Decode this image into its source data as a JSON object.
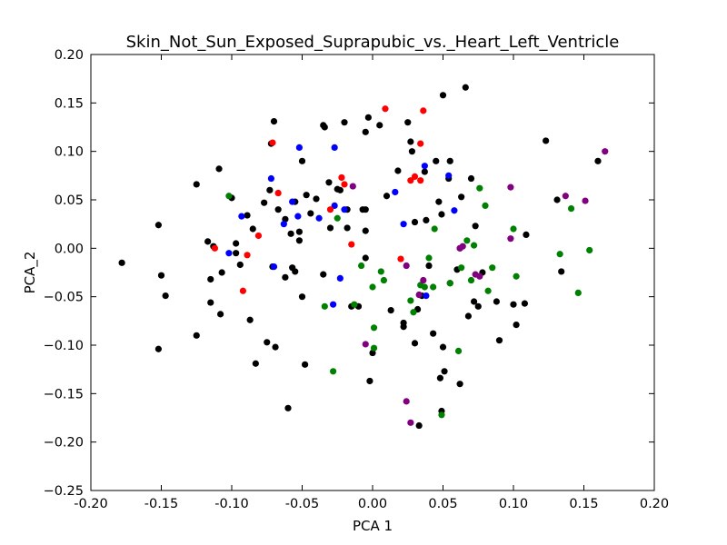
{
  "chart_data": {
    "type": "scatter",
    "title": "Skin_Not_Sun_Exposed_Suprapubic_vs._Heart_Left_Ventricle",
    "xlabel": "PCA 1",
    "ylabel": "PCA_2",
    "xlim": [
      -0.2,
      0.2
    ],
    "ylim": [
      -0.25,
      0.2
    ],
    "xticks": [
      "-0.20",
      "-0.15",
      "-0.10",
      "-0.05",
      "0.00",
      "0.05",
      "0.10",
      "0.15",
      "0.20"
    ],
    "xtick_values": [
      -0.2,
      -0.15,
      -0.1,
      -0.05,
      0.0,
      0.05,
      0.1,
      0.15,
      0.2
    ],
    "yticks": [
      "0.20",
      "0.15",
      "0.10",
      "0.05",
      "0.00",
      "−0.05",
      "−0.10",
      "−0.15",
      "−0.20",
      "−0.25"
    ],
    "ytick_values": [
      0.2,
      0.15,
      0.1,
      0.05,
      0.0,
      -0.05,
      -0.1,
      -0.15,
      -0.2,
      -0.25
    ],
    "grid": false,
    "series": [
      {
        "color": "#000000",
        "points": [
          [
            -0.178,
            -0.015
          ],
          [
            -0.152,
            0.024
          ],
          [
            -0.15,
            -0.028
          ],
          [
            -0.152,
            -0.104
          ],
          [
            -0.147,
            -0.049
          ],
          [
            -0.125,
            0.066
          ],
          [
            -0.125,
            -0.09
          ],
          [
            -0.117,
            0.007
          ],
          [
            -0.115,
            -0.032
          ],
          [
            -0.115,
            -0.056
          ],
          [
            -0.113,
            0.002
          ],
          [
            -0.109,
            0.082
          ],
          [
            -0.108,
            -0.068
          ],
          [
            -0.107,
            -0.025
          ],
          [
            -0.1,
            0.052
          ],
          [
            -0.097,
            0.005
          ],
          [
            -0.097,
            -0.005
          ],
          [
            -0.094,
            -0.017
          ],
          [
            -0.089,
            0.034
          ],
          [
            -0.087,
            -0.074
          ],
          [
            -0.085,
            0.02
          ],
          [
            -0.083,
            -0.119
          ],
          [
            -0.077,
            0.047
          ],
          [
            -0.075,
            -0.097
          ],
          [
            -0.073,
            0.06
          ],
          [
            -0.072,
            0.108
          ],
          [
            -0.07,
            0.131
          ],
          [
            -0.071,
            -0.019
          ],
          [
            -0.069,
            -0.102
          ],
          [
            -0.067,
            0.04
          ],
          [
            -0.062,
            0.03
          ],
          [
            -0.062,
            -0.03
          ],
          [
            -0.06,
            -0.165
          ],
          [
            -0.058,
            0.015
          ],
          [
            -0.057,
            -0.02
          ],
          [
            -0.055,
            -0.024
          ],
          [
            -0.055,
            0.048
          ],
          [
            -0.052,
            0.017
          ],
          [
            -0.052,
            0.008
          ],
          [
            -0.05,
            0.09
          ],
          [
            -0.05,
            -0.05
          ],
          [
            -0.048,
            -0.12
          ],
          [
            -0.047,
            0.055
          ],
          [
            -0.044,
            0.036
          ],
          [
            -0.04,
            0.051
          ],
          [
            -0.035,
            -0.027
          ],
          [
            -0.035,
            0.127
          ],
          [
            -0.034,
            0.125
          ],
          [
            -0.031,
            0.068
          ],
          [
            -0.03,
            0.021
          ],
          [
            -0.025,
            0.061
          ],
          [
            -0.023,
            0.06
          ],
          [
            -0.02,
            0.13
          ],
          [
            -0.018,
            0.04
          ],
          [
            -0.018,
            0.021
          ],
          [
            -0.015,
            -0.06
          ],
          [
            -0.01,
            -0.06
          ],
          [
            -0.007,
            0.04
          ],
          [
            -0.005,
            0.04
          ],
          [
            -0.005,
            0.12
          ],
          [
            -0.005,
            -0.01
          ],
          [
            -0.005,
            0.018
          ],
          [
            -0.003,
            0.135
          ],
          [
            -0.002,
            -0.137
          ],
          [
            0.0,
            -0.108
          ],
          [
            0.005,
            0.127
          ],
          [
            0.01,
            0.054
          ],
          [
            0.013,
            -0.064
          ],
          [
            0.018,
            0.08
          ],
          [
            0.022,
            -0.077
          ],
          [
            0.022,
            -0.081
          ],
          [
            0.025,
            0.13
          ],
          [
            0.027,
            0.11
          ],
          [
            0.028,
            0.1
          ],
          [
            0.03,
            0.027
          ],
          [
            0.03,
            -0.098
          ],
          [
            0.032,
            -0.063
          ],
          [
            0.033,
            -0.183
          ],
          [
            0.035,
            -0.049
          ],
          [
            0.037,
            0.079
          ],
          [
            0.038,
            0.029
          ],
          [
            0.04,
            -0.018
          ],
          [
            0.043,
            -0.088
          ],
          [
            0.045,
            0.09
          ],
          [
            0.047,
            0.048
          ],
          [
            0.048,
            -0.134
          ],
          [
            0.05,
            0.158
          ],
          [
            0.049,
            0.035
          ],
          [
            0.049,
            -0.168
          ],
          [
            0.05,
            -0.102
          ],
          [
            0.051,
            -0.127
          ],
          [
            0.054,
            0.072
          ],
          [
            0.055,
            0.09
          ],
          [
            0.055,
            -0.036
          ],
          [
            0.06,
            -0.022
          ],
          [
            0.062,
            -0.14
          ],
          [
            0.063,
            0.053
          ],
          [
            0.066,
            0.166
          ],
          [
            0.068,
            -0.07
          ],
          [
            0.07,
            0.072
          ],
          [
            0.072,
            -0.055
          ],
          [
            0.073,
            0.023
          ],
          [
            0.075,
            -0.06
          ],
          [
            0.078,
            -0.025
          ],
          [
            0.088,
            -0.055
          ],
          [
            0.09,
            -0.095
          ],
          [
            0.1,
            -0.058
          ],
          [
            0.102,
            -0.079
          ],
          [
            0.108,
            -0.057
          ],
          [
            0.109,
            0.014
          ],
          [
            0.123,
            0.111
          ],
          [
            0.131,
            0.05
          ],
          [
            0.134,
            -0.024
          ],
          [
            0.16,
            0.09
          ]
        ]
      },
      {
        "color": "#0000ff",
        "points": [
          [
            -0.102,
            -0.005
          ],
          [
            -0.093,
            0.033
          ],
          [
            -0.072,
            0.072
          ],
          [
            -0.07,
            -0.019
          ],
          [
            -0.063,
            0.025
          ],
          [
            -0.057,
            0.048
          ],
          [
            -0.053,
            0.033
          ],
          [
            -0.052,
            0.104
          ],
          [
            -0.038,
            0.031
          ],
          [
            -0.028,
            -0.058
          ],
          [
            -0.027,
            0.104
          ],
          [
            -0.023,
            -0.031
          ],
          [
            -0.02,
            0.04
          ],
          [
            -0.027,
            0.044
          ],
          [
            0.016,
            0.058
          ],
          [
            0.022,
            0.025
          ],
          [
            0.037,
            0.085
          ],
          [
            0.038,
            -0.049
          ],
          [
            0.054,
            0.075
          ],
          [
            0.058,
            0.039
          ]
        ]
      },
      {
        "color": "#ff0000",
        "points": [
          [
            -0.112,
            0.0
          ],
          [
            -0.089,
            -0.007
          ],
          [
            -0.081,
            0.013
          ],
          [
            -0.092,
            -0.044
          ],
          [
            -0.071,
            0.109
          ],
          [
            -0.067,
            0.057
          ],
          [
            -0.03,
            0.04
          ],
          [
            -0.022,
            0.073
          ],
          [
            -0.015,
            0.004
          ],
          [
            -0.02,
            0.066
          ],
          [
            0.009,
            0.144
          ],
          [
            0.02,
            -0.011
          ],
          [
            0.027,
            0.07
          ],
          [
            0.03,
            0.074
          ],
          [
            0.034,
            0.108
          ],
          [
            0.034,
            0.07
          ],
          [
            0.036,
            0.142
          ]
        ]
      },
      {
        "color": "#008000",
        "points": [
          [
            -0.102,
            0.054
          ],
          [
            -0.034,
            -0.06
          ],
          [
            -0.028,
            -0.127
          ],
          [
            -0.025,
            0.031
          ],
          [
            -0.013,
            -0.058
          ],
          [
            -0.008,
            -0.018
          ],
          [
            0.0,
            -0.04
          ],
          [
            0.001,
            -0.103
          ],
          [
            0.001,
            -0.082
          ],
          [
            0.006,
            -0.024
          ],
          [
            0.008,
            -0.033
          ],
          [
            0.027,
            -0.054
          ],
          [
            0.029,
            -0.066
          ],
          [
            0.034,
            -0.038
          ],
          [
            0.037,
            -0.04
          ],
          [
            0.04,
            -0.01
          ],
          [
            0.043,
            -0.04
          ],
          [
            0.044,
            0.02
          ],
          [
            0.049,
            -0.172
          ],
          [
            0.055,
            -0.036
          ],
          [
            0.061,
            -0.106
          ],
          [
            0.063,
            -0.02
          ],
          [
            0.067,
            0.008
          ],
          [
            0.07,
            -0.033
          ],
          [
            0.072,
            0.003
          ],
          [
            0.076,
            0.062
          ],
          [
            0.08,
            0.044
          ],
          [
            0.082,
            -0.044
          ],
          [
            0.085,
            -0.02
          ],
          [
            0.1,
            0.02
          ],
          [
            0.102,
            -0.029
          ],
          [
            0.133,
            -0.006
          ],
          [
            0.141,
            0.041
          ],
          [
            0.146,
            -0.046
          ],
          [
            0.154,
            -0.002
          ]
        ]
      },
      {
        "color": "#800080",
        "points": [
          [
            -0.014,
            0.064
          ],
          [
            -0.005,
            -0.099
          ],
          [
            0.024,
            -0.158
          ],
          [
            0.024,
            -0.018
          ],
          [
            0.027,
            -0.18
          ],
          [
            0.033,
            -0.048
          ],
          [
            0.036,
            -0.033
          ],
          [
            0.062,
            0.0
          ],
          [
            0.062,
            0.0
          ],
          [
            0.064,
            0.002
          ],
          [
            0.073,
            -0.027
          ],
          [
            0.076,
            -0.029
          ],
          [
            0.098,
            0.01
          ],
          [
            0.098,
            0.063
          ],
          [
            0.137,
            0.054
          ],
          [
            0.151,
            0.049
          ],
          [
            0.165,
            0.1
          ]
        ]
      }
    ]
  }
}
